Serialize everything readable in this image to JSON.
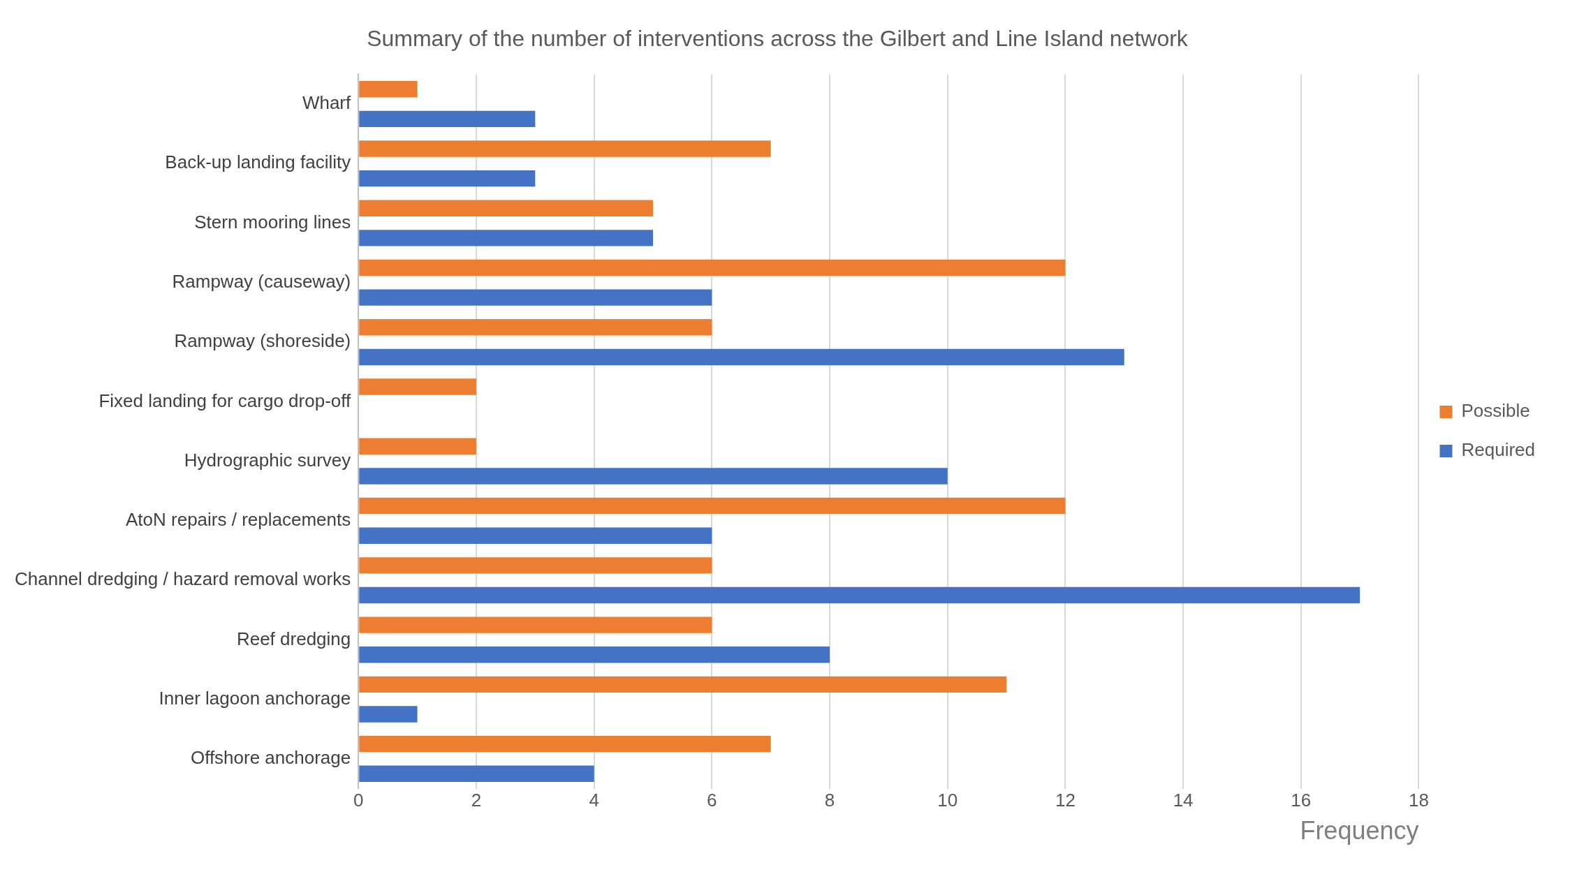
{
  "chart_data": {
    "type": "bar",
    "orientation": "horizontal",
    "title": "Summary of the number of interventions across the Gilbert and Line Island network",
    "xlabel": "Frequency",
    "categories": [
      "Wharf",
      "Back-up landing facility",
      "Stern mooring lines",
      "Rampway (causeway)",
      "Rampway (shoreside)",
      "Fixed landing for cargo drop-off",
      "Hydrographic survey",
      "AtoN repairs / replacements",
      "Channel dredging / hazard removal works",
      "Reef dredging",
      "Inner lagoon anchorage",
      "Offshore anchorage"
    ],
    "series": [
      {
        "name": "Possible",
        "color": "#ed7d31",
        "values": [
          1,
          7,
          5,
          12,
          6,
          2,
          2,
          12,
          6,
          6,
          11,
          7
        ]
      },
      {
        "name": "Required",
        "color": "#4472c4",
        "values": [
          3,
          3,
          5,
          6,
          13,
          0,
          10,
          6,
          17,
          8,
          1,
          4
        ]
      }
    ],
    "xlim": [
      0,
      18
    ],
    "xticks": [
      0,
      2,
      4,
      6,
      8,
      10,
      12,
      14,
      16,
      18
    ],
    "grid": "x",
    "legend": "right"
  }
}
